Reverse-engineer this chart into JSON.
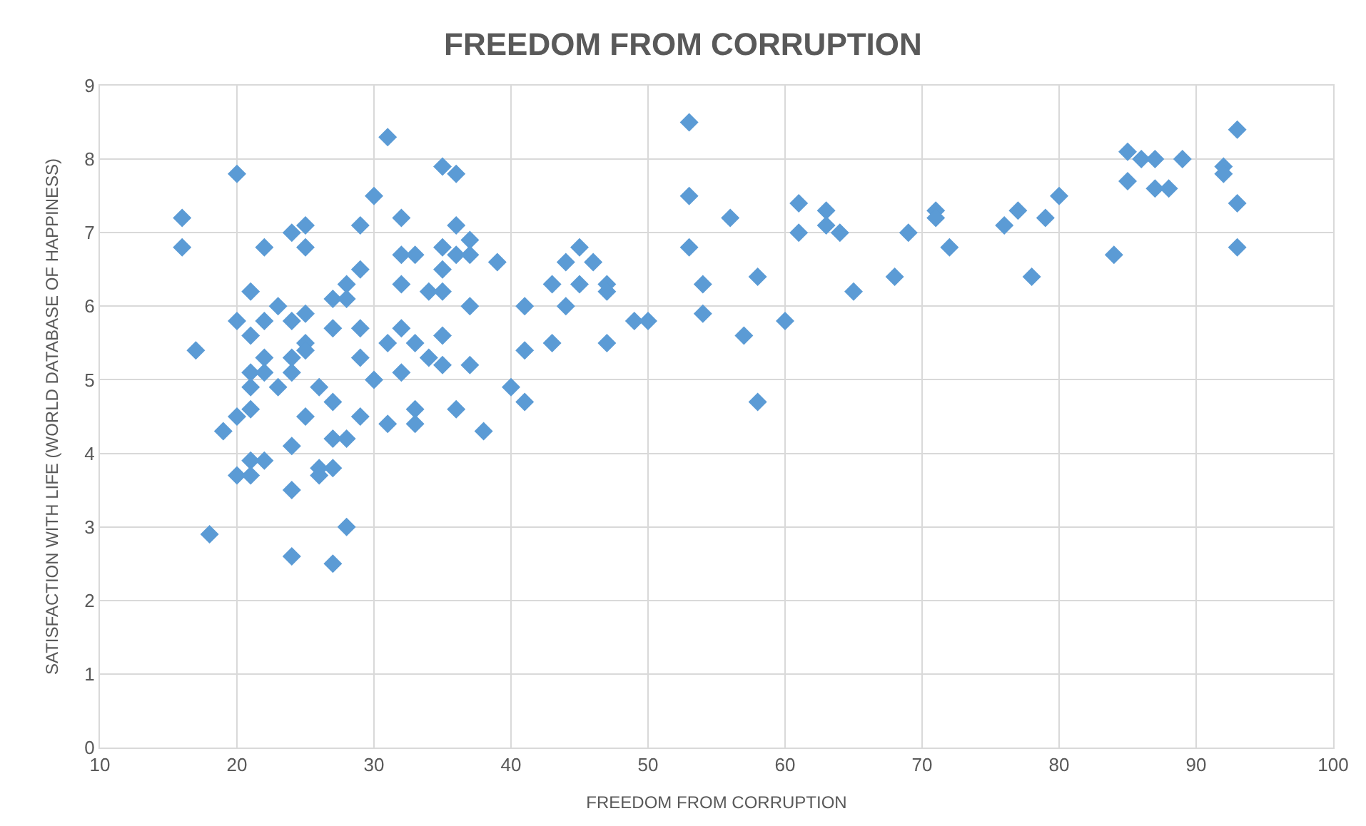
{
  "chart_data": {
    "type": "scatter",
    "title": "FREEDOM FROM CORRUPTION",
    "xlabel": "FREEDOM FROM CORRUPTION",
    "ylabel": "SATISFACTION WITH LIFE (WORLD DATABASE OF HAPPINESS)",
    "x": [
      16,
      16,
      17,
      18,
      19,
      20,
      20,
      20,
      20,
      21,
      21,
      21,
      21,
      21,
      21,
      21,
      22,
      22,
      22,
      22,
      22,
      23,
      23,
      24,
      24,
      24,
      24,
      24,
      24,
      24,
      25,
      25,
      25,
      25,
      25,
      25,
      26,
      26,
      26,
      27,
      27,
      27,
      27,
      27,
      27,
      28,
      28,
      28,
      28,
      29,
      29,
      29,
      29,
      29,
      30,
      30,
      31,
      31,
      31,
      32,
      32,
      32,
      32,
      32,
      33,
      33,
      33,
      33,
      34,
      34,
      35,
      35,
      35,
      35,
      35,
      35,
      36,
      36,
      36,
      36,
      37,
      37,
      37,
      37,
      38,
      39,
      40,
      41,
      41,
      41,
      43,
      43,
      44,
      44,
      45,
      45,
      46,
      47,
      47,
      47,
      49,
      50,
      53,
      53,
      53,
      54,
      54,
      56,
      57,
      58,
      58,
      60,
      61,
      61,
      63,
      63,
      64,
      65,
      68,
      69,
      71,
      71,
      72,
      76,
      77,
      78,
      79,
      80,
      84,
      85,
      85,
      86,
      87,
      87,
      88,
      89,
      92,
      92,
      93,
      93,
      93
    ],
    "series": [
      {
        "color": "#5b9bd5",
        "values": [
          7.2,
          6.8,
          5.4,
          2.9,
          4.3,
          7.8,
          5.8,
          4.5,
          3.7,
          6.2,
          5.6,
          5.1,
          4.9,
          4.6,
          3.9,
          3.7,
          6.8,
          5.8,
          5.3,
          5.1,
          3.9,
          6.0,
          4.9,
          7.0,
          5.8,
          5.3,
          5.1,
          4.1,
          3.5,
          2.6,
          7.1,
          6.8,
          5.9,
          5.5,
          5.4,
          4.5,
          4.9,
          3.8,
          3.7,
          6.1,
          5.7,
          4.7,
          4.2,
          3.8,
          2.5,
          6.3,
          6.1,
          4.2,
          3.0,
          7.1,
          6.5,
          5.7,
          5.3,
          4.5,
          7.5,
          5.0,
          8.3,
          5.5,
          4.4,
          7.2,
          6.7,
          6.3,
          5.7,
          5.1,
          6.7,
          5.5,
          4.6,
          4.4,
          6.2,
          5.3,
          7.9,
          6.8,
          6.5,
          6.2,
          5.6,
          5.2,
          7.8,
          7.1,
          6.7,
          4.6,
          6.9,
          6.7,
          6.0,
          5.2,
          4.3,
          6.6,
          4.9,
          6.0,
          5.4,
          4.7,
          6.3,
          5.5,
          6.6,
          6.0,
          6.8,
          6.3,
          6.6,
          6.3,
          6.2,
          5.5,
          5.8,
          5.8,
          8.5,
          7.5,
          6.8,
          6.3,
          5.9,
          7.2,
          5.6,
          6.4,
          4.7,
          5.8,
          7.4,
          7.0,
          7.3,
          7.1,
          7.0,
          6.2,
          6.4,
          7.0,
          7.3,
          7.2,
          6.8,
          7.1,
          7.3,
          6.4,
          7.2,
          7.5,
          6.7,
          8.1,
          7.7,
          8.0,
          8.0,
          7.6,
          7.6,
          8.0,
          7.9,
          7.8,
          8.4,
          7.4,
          6.8
        ]
      }
    ],
    "xlim": [
      10,
      100
    ],
    "xticks": [
      10,
      20,
      30,
      40,
      50,
      60,
      70,
      80,
      90,
      100
    ],
    "ylim": [
      0,
      9
    ],
    "yticks": [
      0,
      1,
      2,
      3,
      4,
      5,
      6,
      7,
      8,
      9
    ],
    "grid": true,
    "marker": "diamond"
  }
}
